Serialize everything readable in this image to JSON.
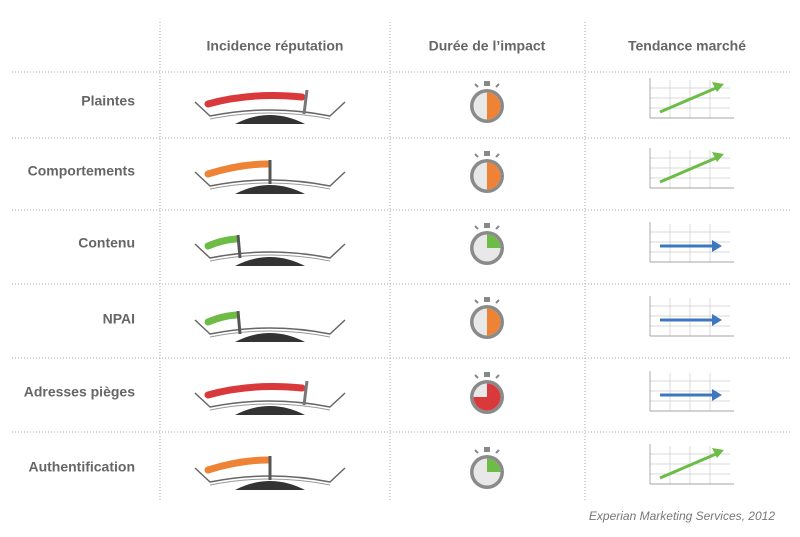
{
  "header": {
    "columns": [
      "Incidence réputation",
      "Durée de l’impact",
      "Tendance marché"
    ]
  },
  "rows": [
    "Plaintes",
    "Comportements",
    "Contenu",
    "NPAI",
    "Adresses pièges",
    "Authentification"
  ],
  "footer": "Experian Marketing Services, 2012"
}
